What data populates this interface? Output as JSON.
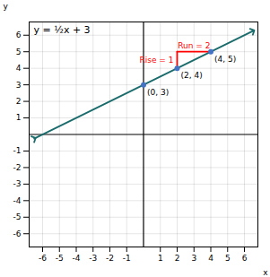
{
  "chart_data": {
    "type": "line",
    "xlabel": "x",
    "ylabel": "y",
    "xlim": [
      -6.8,
      6.8
    ],
    "ylim": [
      -6.8,
      6.8
    ],
    "xticks": [
      -6,
      -5,
      -4,
      -3,
      -2,
      -1,
      1,
      2,
      3,
      4,
      5,
      6
    ],
    "yticks": [
      -6,
      -5,
      -4,
      -3,
      -2,
      -1,
      1,
      2,
      3,
      4,
      5,
      6
    ],
    "grid": true,
    "line": {
      "x": [
        -6.5,
        6.5
      ],
      "values": [
        -0.25,
        6.25
      ],
      "color": "#1a6b6b"
    },
    "points": {
      "x": [
        0,
        2,
        4
      ],
      "values": [
        3,
        4,
        5
      ],
      "labels": [
        "(0, 3)",
        "(2, 4)",
        "(4, 5)"
      ],
      "color": "#4472C4"
    },
    "rise": {
      "x": [
        2,
        2
      ],
      "values": [
        4,
        5
      ],
      "label": "Rise = 1",
      "color": "#FF0000"
    },
    "run": {
      "x": [
        2,
        4
      ],
      "values": [
        5,
        5
      ],
      "label": "Run = 2",
      "color": "#FF0000"
    },
    "annotations": [
      {
        "text": "y = ½x + 3"
      }
    ]
  }
}
